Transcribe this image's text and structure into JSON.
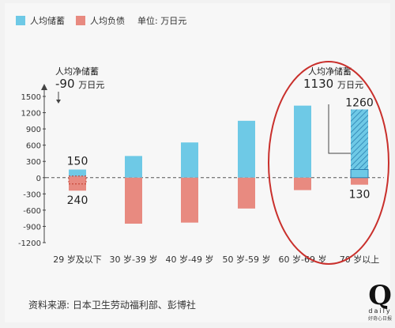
{
  "legend": {
    "savings": "人均储蓄",
    "debt": "人均负债",
    "unit": "单位: 万日元"
  },
  "annotations": {
    "left_title": "人均净储蓄",
    "left_value": "-90",
    "left_unit": "万日元",
    "right_title": "人均净储蓄",
    "right_value": "1130",
    "right_unit": "万日元"
  },
  "source": "资料来源: 日本卫生劳动福利部、彭博社",
  "logo": {
    "mark": "Q",
    "word": "daily",
    "sub": "好奇心日报"
  },
  "colors": {
    "savings": "#6ec9e6",
    "debt": "#e88a80",
    "circle": "#c9302c",
    "axis_text": "#333333"
  },
  "chart_data": {
    "type": "bar",
    "categories": [
      "29 岁及以下",
      "30 岁-39 岁",
      "40 岁-49 岁",
      "50 岁-59 岁",
      "60 岁-69 岁",
      "70 岁以上"
    ],
    "series": [
      {
        "name": "人均储蓄",
        "values": [
          150,
          400,
          650,
          1050,
          1330,
          1260
        ]
      },
      {
        "name": "人均负债",
        "values": [
          -240,
          -850,
          -830,
          -570,
          -230,
          -130
        ]
      }
    ],
    "ylim": [
      -1200,
      1500
    ],
    "yticks": [
      -1200,
      -900,
      -600,
      -300,
      0,
      300,
      600,
      900,
      1200,
      1500
    ],
    "labels": {
      "savings_first": "150",
      "debt_first": "240",
      "savings_last": "1260",
      "debt_last": "130"
    }
  }
}
